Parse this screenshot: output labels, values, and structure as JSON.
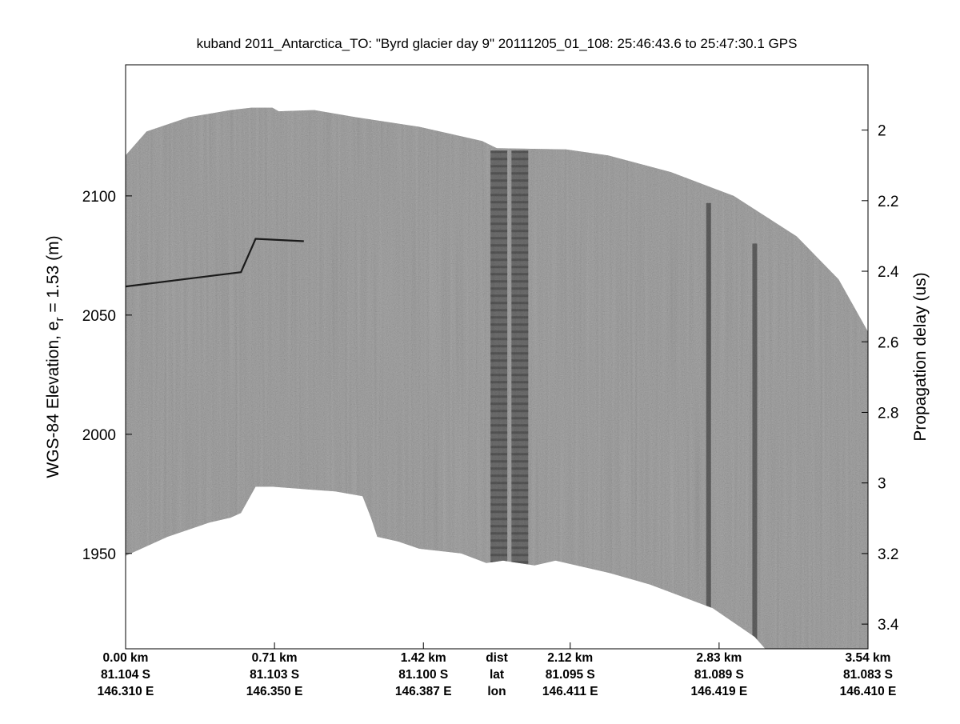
{
  "chart_data": {
    "type": "radargram",
    "title": "kuband 2011_Antarctica_TO: \"Byrd glacier day 9\"  20111205_01_108: 25:46:43.6 to 25:47:30.1 GPS",
    "ylabel_left": "WGS-84 Elevation, e",
    "ylabel_left_sub": "r",
    "ylabel_left_tail": " = 1.53 (m)",
    "ylabel_right": "Propagation delay (us)",
    "ylim_left": [
      1910,
      2155
    ],
    "yticks_left": [
      2100,
      2050,
      2000,
      1950
    ],
    "ylim_right": [
      1.815,
      3.47
    ],
    "yticks_right": [
      2,
      2.2,
      2.4,
      2.6,
      2.8,
      3,
      3.2,
      3.4
    ],
    "xlim_km": [
      0,
      3.54
    ],
    "bottom_rows": [
      {
        "label": "dist",
        "values": [
          "0.00 km",
          "0.71 km",
          "1.42 km",
          "2.12 km",
          "2.83 km",
          "3.54 km"
        ]
      },
      {
        "label": "lat",
        "values": [
          "81.104 S",
          "81.103 S",
          "81.100 S",
          "81.095 S",
          "81.089 S",
          "81.083 S"
        ]
      },
      {
        "label": "lon",
        "values": [
          "146.310 E",
          "146.350 E",
          "146.387 E",
          "146.411 E",
          "146.419 E",
          "146.410 E"
        ]
      }
    ],
    "bottom_tick_km": [
      0,
      0.71,
      1.42,
      2.12,
      2.83,
      3.54
    ],
    "row_label_km": 1.77,
    "surface_profile": [
      [
        0,
        2117
      ],
      [
        0.1,
        2127
      ],
      [
        0.3,
        2133
      ],
      [
        0.5,
        2136
      ],
      [
        0.6,
        2137
      ],
      [
        0.7,
        2137
      ],
      [
        0.73,
        2135.5
      ],
      [
        0.9,
        2136
      ],
      [
        1.1,
        2133
      ],
      [
        1.4,
        2129
      ],
      [
        1.7,
        2123
      ],
      [
        1.77,
        2120
      ],
      [
        2.1,
        2119.5
      ],
      [
        2.3,
        2117
      ],
      [
        2.6,
        2110
      ],
      [
        2.9,
        2100
      ],
      [
        3.2,
        2083
      ],
      [
        3.4,
        2065
      ],
      [
        3.54,
        2043
      ]
    ],
    "bottom_profile": [
      [
        0,
        1949
      ],
      [
        0.2,
        1957
      ],
      [
        0.4,
        1963
      ],
      [
        0.5,
        1965
      ],
      [
        0.55,
        1967
      ],
      [
        0.62,
        1978
      ],
      [
        0.7,
        1978
      ],
      [
        1.0,
        1976
      ],
      [
        1.13,
        1974
      ],
      [
        1.17,
        1965
      ],
      [
        1.2,
        1957
      ],
      [
        1.3,
        1955
      ],
      [
        1.4,
        1952
      ],
      [
        1.6,
        1950
      ],
      [
        1.72,
        1946
      ],
      [
        1.8,
        1947
      ],
      [
        1.95,
        1945
      ],
      [
        2.05,
        1947
      ],
      [
        2.3,
        1942
      ],
      [
        2.5,
        1937
      ],
      [
        2.8,
        1927
      ],
      [
        3.0,
        1915
      ],
      [
        3.05,
        1910
      ]
    ],
    "layer_line": [
      [
        0,
        2062
      ],
      [
        0.55,
        2068
      ],
      [
        0.6,
        2078
      ],
      [
        0.62,
        2082
      ],
      [
        0.85,
        2081
      ]
    ],
    "dark_bands_km": [
      {
        "from": 1.74,
        "to": 1.82,
        "top": 2119,
        "bottom": 1946
      },
      {
        "from": 1.84,
        "to": 1.92,
        "top": 2119,
        "bottom": 1945
      }
    ],
    "dark_streaks_km": [
      {
        "x": 2.78,
        "top": 2097,
        "bottom": 1930
      },
      {
        "x": 3.0,
        "top": 2080,
        "bottom": 1911
      }
    ],
    "colors": {
      "image": "#7c7c7c",
      "image_dark": "#2a2a2a",
      "frame": "#000000",
      "background": "#ffffff"
    }
  }
}
